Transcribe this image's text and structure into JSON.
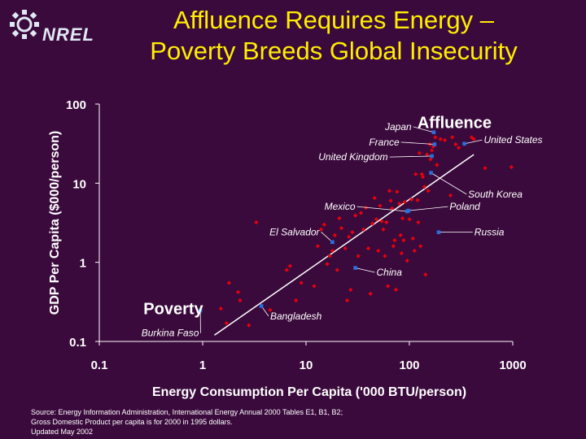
{
  "header": {
    "logo_text": "NREL",
    "title_line1": "Affluence Requires Energy –",
    "title_line2": "Poverty Breeds Global Insecurity"
  },
  "footer": {
    "line1": "Source:  Energy Information Administration, International Energy Annual 2000 Tables E1, B1, B2;",
    "line2": "Gross Domestic Product per capita is for 2000 in 1995 dollars.",
    "line3": "Updated May 2002"
  },
  "chart_data": {
    "type": "scatter",
    "xlabel": "Energy Consumption Per Capita ('000 BTU/person)",
    "ylabel": "GDP Per Capita ($000/person)",
    "xscale": "log",
    "yscale": "log",
    "xlim": [
      0.1,
      1000
    ],
    "ylim": [
      0.1,
      100
    ],
    "xticks": [
      0.1,
      1,
      10,
      100,
      1000
    ],
    "xtick_labels": [
      "0.1",
      "1",
      "10",
      "100",
      "1000"
    ],
    "yticks": [
      0.1,
      1,
      10,
      100
    ],
    "ytick_labels": [
      "0.1",
      "1",
      "10",
      "100"
    ],
    "grid": false,
    "colors": {
      "background": "#3a0a3c",
      "other_countries": "#e8000c",
      "highlighted": "#2a6fdb",
      "trend": "#ffffff",
      "title": "#ffee00",
      "text": "#ffffff"
    },
    "annotations": [
      {
        "text": "Affluence",
        "x": 180,
        "y": 60
      },
      {
        "text": "Poverty",
        "x": 0.45,
        "y": 0.25
      }
    ],
    "trend_line": {
      "x": [
        1.3,
        420
      ],
      "y": [
        0.12,
        23
      ]
    },
    "highlighted": [
      {
        "name": "Japan",
        "x": 172,
        "y": 44,
        "label_x": 105,
        "label_y": 47,
        "anchor": "end"
      },
      {
        "name": "France",
        "x": 175,
        "y": 31,
        "label_x": 80,
        "label_y": 30,
        "anchor": "end"
      },
      {
        "name": "United Kingdom",
        "x": 165,
        "y": 22,
        "label_x": 62,
        "label_y": 19.5,
        "anchor": "end"
      },
      {
        "name": "United States",
        "x": 340,
        "y": 31.5,
        "label_x": 525,
        "label_y": 32,
        "anchor": "start"
      },
      {
        "name": "South Korea",
        "x": 162,
        "y": 13.5,
        "label_x": 370,
        "label_y": 6.6,
        "anchor": "start"
      },
      {
        "name": "Mexico",
        "x": 95,
        "y": 4.4,
        "label_x": 30,
        "label_y": 4.6,
        "anchor": "end"
      },
      {
        "name": "Poland",
        "x": 98,
        "y": 4.5,
        "label_x": 245,
        "label_y": 4.6,
        "anchor": "start"
      },
      {
        "name": "El Salvador",
        "x": 18,
        "y": 1.8,
        "label_x": 13.5,
        "label_y": 2.2,
        "anchor": "end"
      },
      {
        "name": "Russia",
        "x": 192,
        "y": 2.4,
        "label_x": 425,
        "label_y": 2.2,
        "anchor": "start"
      },
      {
        "name": "China",
        "x": 30,
        "y": 0.85,
        "label_x": 48,
        "label_y": 0.68,
        "anchor": "start"
      },
      {
        "name": "Bangladesh",
        "x": 3.7,
        "y": 0.28,
        "label_x": 4.5,
        "label_y": 0.19,
        "anchor": "start"
      },
      {
        "name": "Burkina Faso",
        "x": 0.95,
        "y": 0.245,
        "label_x": 0.92,
        "label_y": 0.116,
        "anchor": "end"
      }
    ],
    "other_countries": [
      [
        1.5,
        0.26
      ],
      [
        1.8,
        0.55
      ],
      [
        1.7,
        0.17
      ],
      [
        2.2,
        0.42
      ],
      [
        2.3,
        0.33
      ],
      [
        2.8,
        0.16
      ],
      [
        3.3,
        3.2
      ],
      [
        4.5,
        0.25
      ],
      [
        6.5,
        0.8
      ],
      [
        7,
        0.9
      ],
      [
        8,
        0.33
      ],
      [
        9,
        0.55
      ],
      [
        12,
        0.5
      ],
      [
        13,
        1.6
      ],
      [
        14,
        2.6
      ],
      [
        15,
        3
      ],
      [
        16,
        0.95
      ],
      [
        17,
        1.2
      ],
      [
        18,
        1.4
      ],
      [
        19,
        2.2
      ],
      [
        20,
        0.8
      ],
      [
        21,
        3.6
      ],
      [
        22,
        2.7
      ],
      [
        24,
        1.5
      ],
      [
        25,
        0.33
      ],
      [
        26,
        2.1
      ],
      [
        27,
        0.45
      ],
      [
        28,
        2.4
      ],
      [
        30,
        3.9
      ],
      [
        32,
        1.2
      ],
      [
        34,
        4.2
      ],
      [
        36,
        2.6
      ],
      [
        38,
        4.9
      ],
      [
        40,
        1.5
      ],
      [
        42,
        0.4
      ],
      [
        44,
        3.1
      ],
      [
        46,
        6.5
      ],
      [
        48,
        3.5
      ],
      [
        50,
        1.4
      ],
      [
        52,
        5.2
      ],
      [
        54,
        3.3
      ],
      [
        56,
        2.6
      ],
      [
        58,
        1.2
      ],
      [
        60,
        3.2
      ],
      [
        62,
        0.5
      ],
      [
        64,
        8
      ],
      [
        66,
        6
      ],
      [
        68,
        4.8
      ],
      [
        70,
        1.6
      ],
      [
        72,
        1.9
      ],
      [
        74,
        0.45
      ],
      [
        76,
        7.8
      ],
      [
        80,
        5.5
      ],
      [
        82,
        2.2
      ],
      [
        84,
        1.3
      ],
      [
        86,
        3.6
      ],
      [
        88,
        1.9
      ],
      [
        90,
        5.8
      ],
      [
        95,
        1.05
      ],
      [
        100,
        3.5
      ],
      [
        105,
        6.2
      ],
      [
        108,
        2
      ],
      [
        112,
        1.4
      ],
      [
        115,
        13
      ],
      [
        120,
        6.1
      ],
      [
        122,
        3.2
      ],
      [
        125,
        24
      ],
      [
        128,
        1.6
      ],
      [
        132,
        13
      ],
      [
        135,
        12
      ],
      [
        140,
        9
      ],
      [
        143,
        0.7
      ],
      [
        148,
        23
      ],
      [
        152,
        8
      ],
      [
        158,
        31
      ],
      [
        160,
        20
      ],
      [
        165,
        26
      ],
      [
        170,
        29
      ],
      [
        178,
        38
      ],
      [
        185,
        17
      ],
      [
        200,
        36
      ],
      [
        220,
        35
      ],
      [
        250,
        7
      ],
      [
        260,
        38
      ],
      [
        280,
        31
      ],
      [
        300,
        28
      ],
      [
        400,
        38
      ],
      [
        420,
        36
      ],
      [
        540,
        15.5
      ],
      [
        970,
        16
      ]
    ]
  }
}
